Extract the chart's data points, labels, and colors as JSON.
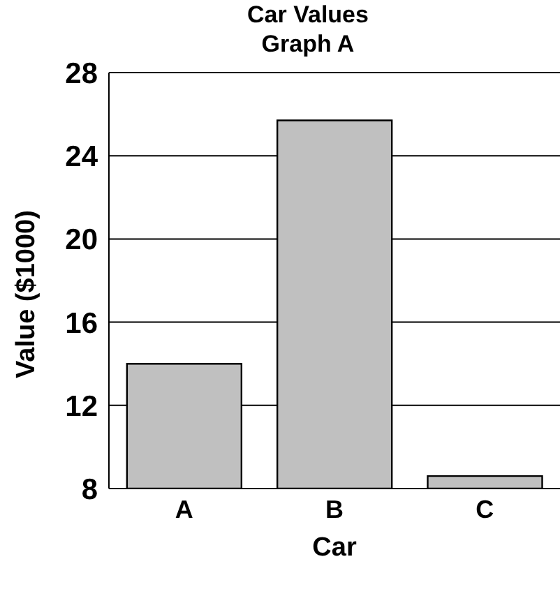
{
  "chart_data": {
    "type": "bar",
    "title": "Car Values",
    "subtitle": "Graph A",
    "xlabel": "Car",
    "ylabel": "Value ($1000)",
    "categories": [
      "A",
      "B",
      "C"
    ],
    "values": [
      14,
      25.7,
      8.6
    ],
    "color": "#c0c0c0",
    "ylim": [
      8,
      28
    ],
    "yticks": [
      8,
      12,
      16,
      20,
      24,
      28
    ],
    "grid": "y"
  }
}
